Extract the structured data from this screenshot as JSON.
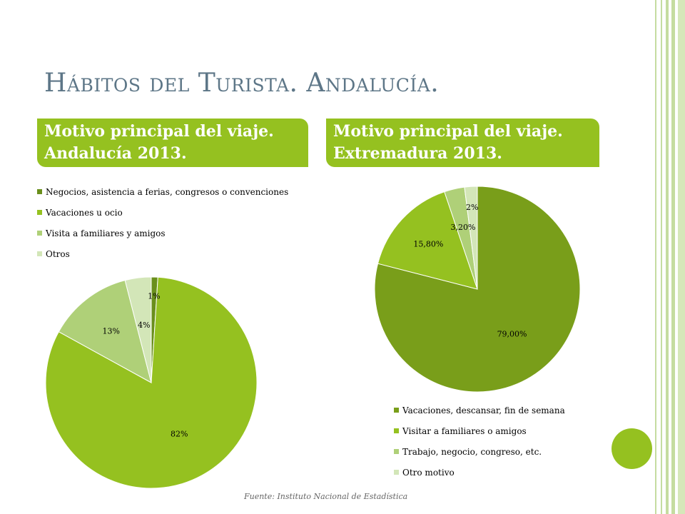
{
  "slide": {
    "title": "Hábitos del Turista. Andalucía.",
    "source": "Fuente: Instituto Nacional de Estadística",
    "accent_color": "#95c120",
    "title_color": "#5d7687"
  },
  "chart_data": [
    {
      "type": "pie",
      "title": "Motivo principal del viaje. Andalucía 2013.",
      "categories": [
        "Negocios, asistencia a ferias, congresos o convenciones",
        "Vacaciones u ocio",
        "Visita a familiares y amigos",
        "Otros"
      ],
      "values": [
        1,
        82,
        13,
        4
      ],
      "labels": [
        "1%",
        "82%",
        "13%",
        "4%"
      ],
      "colors": [
        "#6a8f1c",
        "#95c120",
        "#afd078",
        "#d3e6b8"
      ],
      "legend_position": "top"
    },
    {
      "type": "pie",
      "title": "Motivo principal del viaje. Extremadura 2013.",
      "categories": [
        "Vacaciones, descansar, fin de semana",
        "Visitar a familiares o amigos",
        "Trabajo, negocio, congreso, etc.",
        "Otro motivo"
      ],
      "values": [
        79.0,
        15.8,
        3.2,
        2.0
      ],
      "labels": [
        "79,00%",
        "15,80%",
        "3,20%",
        "2%"
      ],
      "colors": [
        "#799e1a",
        "#95c120",
        "#afd078",
        "#d3e6b8"
      ],
      "legend_position": "bottom"
    }
  ]
}
